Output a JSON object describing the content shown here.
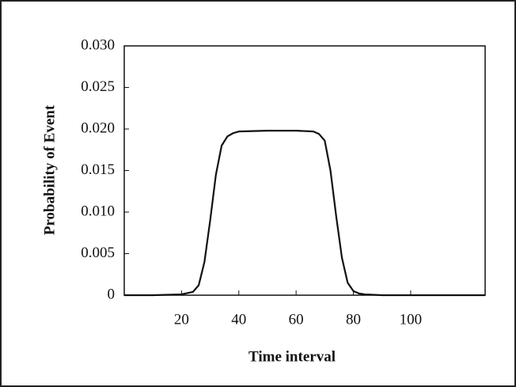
{
  "chart_data": {
    "type": "line",
    "x_label": "Time interval",
    "y_label": "Probability of Event",
    "x": [
      0,
      10,
      20,
      24,
      26,
      28,
      30,
      32,
      34,
      36,
      38,
      40,
      50,
      60,
      66,
      68,
      70,
      72,
      74,
      76,
      78,
      80,
      82,
      84,
      90,
      100,
      110,
      126
    ],
    "values": [
      0,
      0,
      0.0001,
      0.0004,
      0.0012,
      0.004,
      0.009,
      0.0145,
      0.018,
      0.0191,
      0.0195,
      0.0197,
      0.0198,
      0.0198,
      0.0197,
      0.0194,
      0.0186,
      0.015,
      0.0095,
      0.0045,
      0.0015,
      0.0005,
      0.0002,
      0.0001,
      0,
      0,
      0,
      0
    ],
    "color": "#111111",
    "xlim": [
      0,
      126
    ],
    "xticks": [
      20,
      40,
      60,
      80,
      100
    ],
    "ylim": [
      0,
      0.03
    ],
    "yticks": [
      0,
      0.005,
      {
        "value": 0.01,
        "label": "0.010"
      },
      0.015,
      {
        "value": 0.02,
        "label": "0.020"
      },
      0.025,
      {
        "value": 0.03,
        "label": "0.030"
      }
    ],
    "grid": false
  }
}
